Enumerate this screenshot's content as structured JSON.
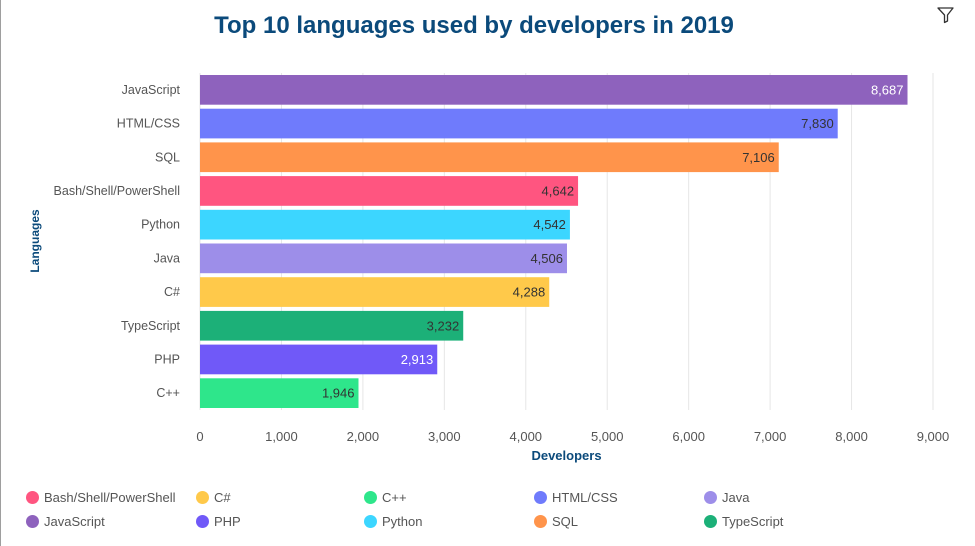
{
  "title": "Top 10 languages used by developers in 2019",
  "chart_data": {
    "type": "bar",
    "orientation": "horizontal",
    "title": "Top 10 languages used by developers in 2019",
    "xlabel": "Developers",
    "ylabel": "Languages",
    "xlim": [
      0,
      9000
    ],
    "xticks": [
      0,
      1000,
      2000,
      3000,
      4000,
      5000,
      6000,
      7000,
      8000,
      9000
    ],
    "xtick_labels": [
      "0",
      "1,000",
      "2,000",
      "3,000",
      "4,000",
      "5,000",
      "6,000",
      "7,000",
      "8,000",
      "9,000"
    ],
    "grid": "vertical",
    "categories": [
      "JavaScript",
      "HTML/CSS",
      "SQL",
      "Bash/Shell/PowerShell",
      "Python",
      "Java",
      "C#",
      "TypeScript",
      "PHP",
      "C++"
    ],
    "values": [
      8687,
      7830,
      7106,
      4642,
      4542,
      4506,
      4288,
      3232,
      2913,
      1946
    ],
    "value_labels": [
      "8,687",
      "7,830",
      "7,106",
      "4,642",
      "4,542",
      "4,506",
      "4,288",
      "3,232",
      "2,913",
      "1,946"
    ],
    "colors": [
      "#8e62bd",
      "#6f7bfc",
      "#ff944b",
      "#ff5580",
      "#3cd6ff",
      "#9d8ee9",
      "#ffc94a",
      "#1cb078",
      "#7059f8",
      "#2ee68b"
    ],
    "label_colors": [
      "#ffffff",
      "#333333",
      "#333333",
      "#333333",
      "#333333",
      "#333333",
      "#333333",
      "#333333",
      "#ffffff",
      "#333333"
    ],
    "legend_position": "bottom"
  },
  "legend": [
    {
      "label": "Bash/Shell/PowerShell",
      "color": "#ff5580"
    },
    {
      "label": "C#",
      "color": "#ffc94a"
    },
    {
      "label": "C++",
      "color": "#2ee68b"
    },
    {
      "label": "HTML/CSS",
      "color": "#6f7bfc"
    },
    {
      "label": "Java",
      "color": "#9d8ee9"
    },
    {
      "label": "JavaScript",
      "color": "#8e62bd"
    },
    {
      "label": "PHP",
      "color": "#7059f8"
    },
    {
      "label": "Python",
      "color": "#3cd6ff"
    },
    {
      "label": "SQL",
      "color": "#ff944b"
    },
    {
      "label": "TypeScript",
      "color": "#1cb078"
    }
  ],
  "toolbar": {
    "filter_icon": "filter-icon"
  }
}
